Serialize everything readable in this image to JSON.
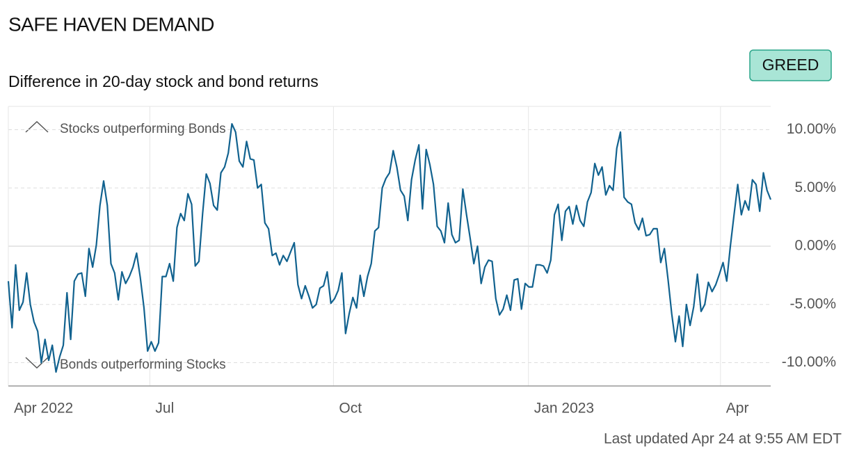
{
  "chart_data": {
    "type": "line",
    "title": "SAFE HAVEN DEMAND",
    "subtitle": "Difference in 20-day stock and bond returns",
    "badge": "GREED",
    "annotations": [
      "Stocks outperforming Bonds",
      "Bonds outperforming Stocks"
    ],
    "footer": "Last updated Apr 24 at 9:55 AM EDT",
    "color": "#11628f",
    "grid": true,
    "xlim": [
      0,
      208
    ],
    "xticks": [
      {
        "value": 0,
        "label": "Apr 2022"
      },
      {
        "value": 38.6,
        "label": "Jul"
      },
      {
        "value": 88.7,
        "label": "Oct"
      },
      {
        "value": 141.9,
        "label": "Jan 2023"
      },
      {
        "value": 194.3,
        "label": "Apr"
      }
    ],
    "ylim": [
      -12,
      12
    ],
    "yticks": [
      {
        "value": 10,
        "label": "10.00%"
      },
      {
        "value": 5,
        "label": "5.00%"
      },
      {
        "value": 0,
        "label": "0.00%"
      },
      {
        "value": -5,
        "label": "-5.00%"
      },
      {
        "value": -10,
        "label": "-10.00%"
      }
    ],
    "values": [
      -3,
      -7,
      -1.6,
      -5.5,
      -4.8,
      -2.3,
      -5,
      -6.5,
      -7.3,
      -10,
      -8,
      -9.8,
      -8.5,
      -10.8,
      -9.5,
      -8.5,
      -4,
      -8,
      -3,
      -2.4,
      -2.3,
      -4.3,
      -0.2,
      -1.8,
      0.1,
      3.5,
      5.6,
      3.5,
      -1.5,
      -2.3,
      -4.6,
      -2.2,
      -3.2,
      -2.6,
      -1.8,
      -0.6,
      -2.7,
      -5.3,
      -9,
      -8.2,
      -9,
      -8.3,
      -2.6,
      -2.6,
      -1.5,
      -3,
      1.6,
      2.8,
      2.2,
      4.5,
      3.6,
      -1.7,
      -1.3,
      2.8,
      6.2,
      5.4,
      3.5,
      3.1,
      6.3,
      6.8,
      8,
      10.5,
      9.8,
      7.3,
      6.8,
      9,
      7.5,
      7.4,
      5,
      5.3,
      2,
      1.5,
      -0.8,
      -0.6,
      -1.6,
      -0.8,
      -1.3,
      -0.5,
      0.3,
      -3.3,
      -4.5,
      -3.4,
      -4.3,
      -5.3,
      -5,
      -3.6,
      -3.4,
      -2.2,
      -4.9,
      -4.5,
      -3.8,
      -2.3,
      -7.5,
      -5.8,
      -4.4,
      -5.3,
      -2.5,
      -4.3,
      -2.6,
      -1.5,
      1.3,
      1.6,
      5,
      5.8,
      6.3,
      8.2,
      6.8,
      4.8,
      4.3,
      2.2,
      5.7,
      7.4,
      8.7,
      3.2,
      8.3,
      7,
      5.3,
      1.7,
      1.3,
      0.3,
      3.7,
      1,
      0.3,
      0.5,
      4.9,
      2.7,
      0.7,
      -1.5,
      0,
      -3.2,
      -1.8,
      -1.2,
      -1.3,
      -4.5,
      -5.9,
      -5.4,
      -4.2,
      -5.5,
      -2.9,
      -2.8,
      -5.4,
      -3.2,
      -3.5,
      -3.5,
      -1.6,
      -1.6,
      -1.7,
      -2.3,
      -1.2,
      2.7,
      3.6,
      0.5,
      3,
      3.4,
      1.9,
      3.5,
      2.2,
      1.7,
      3.8,
      4.6,
      7.1,
      6.1,
      6.8,
      4.4,
      5.2,
      4.8,
      8.4,
      9.8,
      4.2,
      3.8,
      3.6,
      2,
      1.4,
      2.4,
      0.9,
      1,
      1.5,
      1.5,
      -1.4,
      -0.2,
      -2.9,
      -5.8,
      -8.2,
      -6,
      -8.6,
      -5,
      -6.8,
      -5.2,
      -2.4,
      -5.6,
      -5,
      -3.1,
      -3.9,
      -3.3,
      -2.4,
      -1.4,
      -3,
      0,
      2.7,
      5.3,
      2.7,
      3.9,
      3.1,
      5.7,
      5.3,
      3,
      6.3,
      4.8,
      4
    ]
  }
}
